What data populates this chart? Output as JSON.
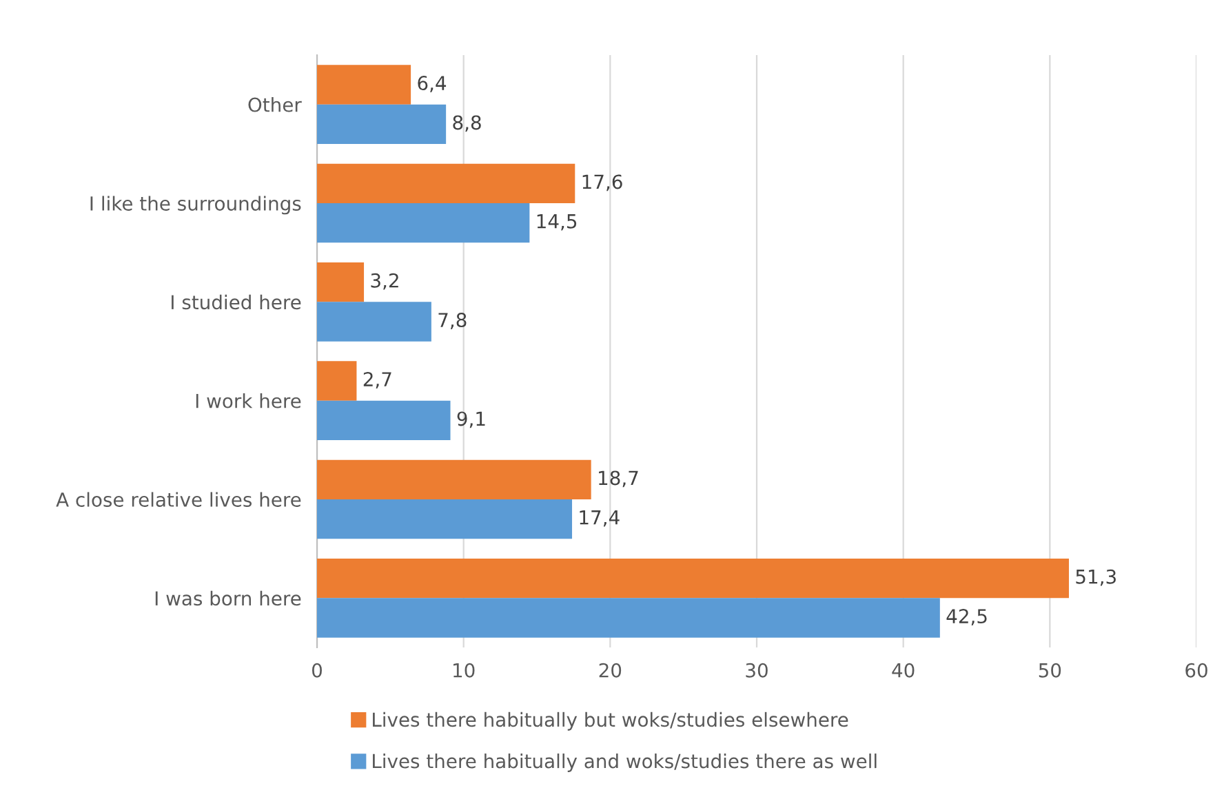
{
  "chart_data": {
    "type": "bar",
    "orientation": "horizontal",
    "categories": [
      "Other",
      "I like the surroundings",
      "I studied here",
      "I work here",
      "A close relative lives here",
      "I was born here"
    ],
    "series": [
      {
        "name": "Lives there habitually but woks/studies elsewhere",
        "color": "#ed7d31",
        "values": [
          6.4,
          17.6,
          3.2,
          2.7,
          18.7,
          51.3
        ],
        "value_labels": [
          "6,4",
          "17,6",
          "3,2",
          "2,7",
          "18,7",
          "51,3"
        ]
      },
      {
        "name": "Lives there habitually and woks/studies there as well",
        "color": "#5b9bd5",
        "values": [
          8.8,
          14.5,
          7.8,
          9.1,
          17.4,
          42.5
        ],
        "value_labels": [
          "8,8",
          "14,5",
          "7,8",
          "9,1",
          "17,4",
          "42,5"
        ]
      }
    ],
    "xlim": [
      0,
      60
    ],
    "xticks": [
      0,
      10,
      20,
      30,
      40,
      50,
      60
    ],
    "grid": "x",
    "legend": "bottom"
  }
}
